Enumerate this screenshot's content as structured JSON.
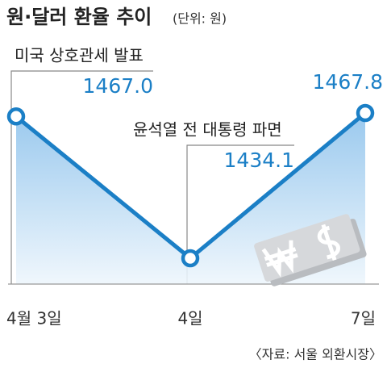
{
  "chart_data": {
    "type": "line",
    "title": "원·달러 환율 추이",
    "subtitle": "(단위: 원)",
    "categories": [
      "4월 3일",
      "4일",
      "7일"
    ],
    "values": [
      1467.0,
      1434.1,
      1467.8
    ],
    "value_labels": [
      "1467.0",
      "1434.1",
      "1467.8"
    ],
    "color": "#1b7fc6",
    "annotations": [
      "미국 상호관세 발표",
      "윤석열 전 대통령 파면"
    ],
    "source": "〈자료: 서울 외환시장〉"
  }
}
